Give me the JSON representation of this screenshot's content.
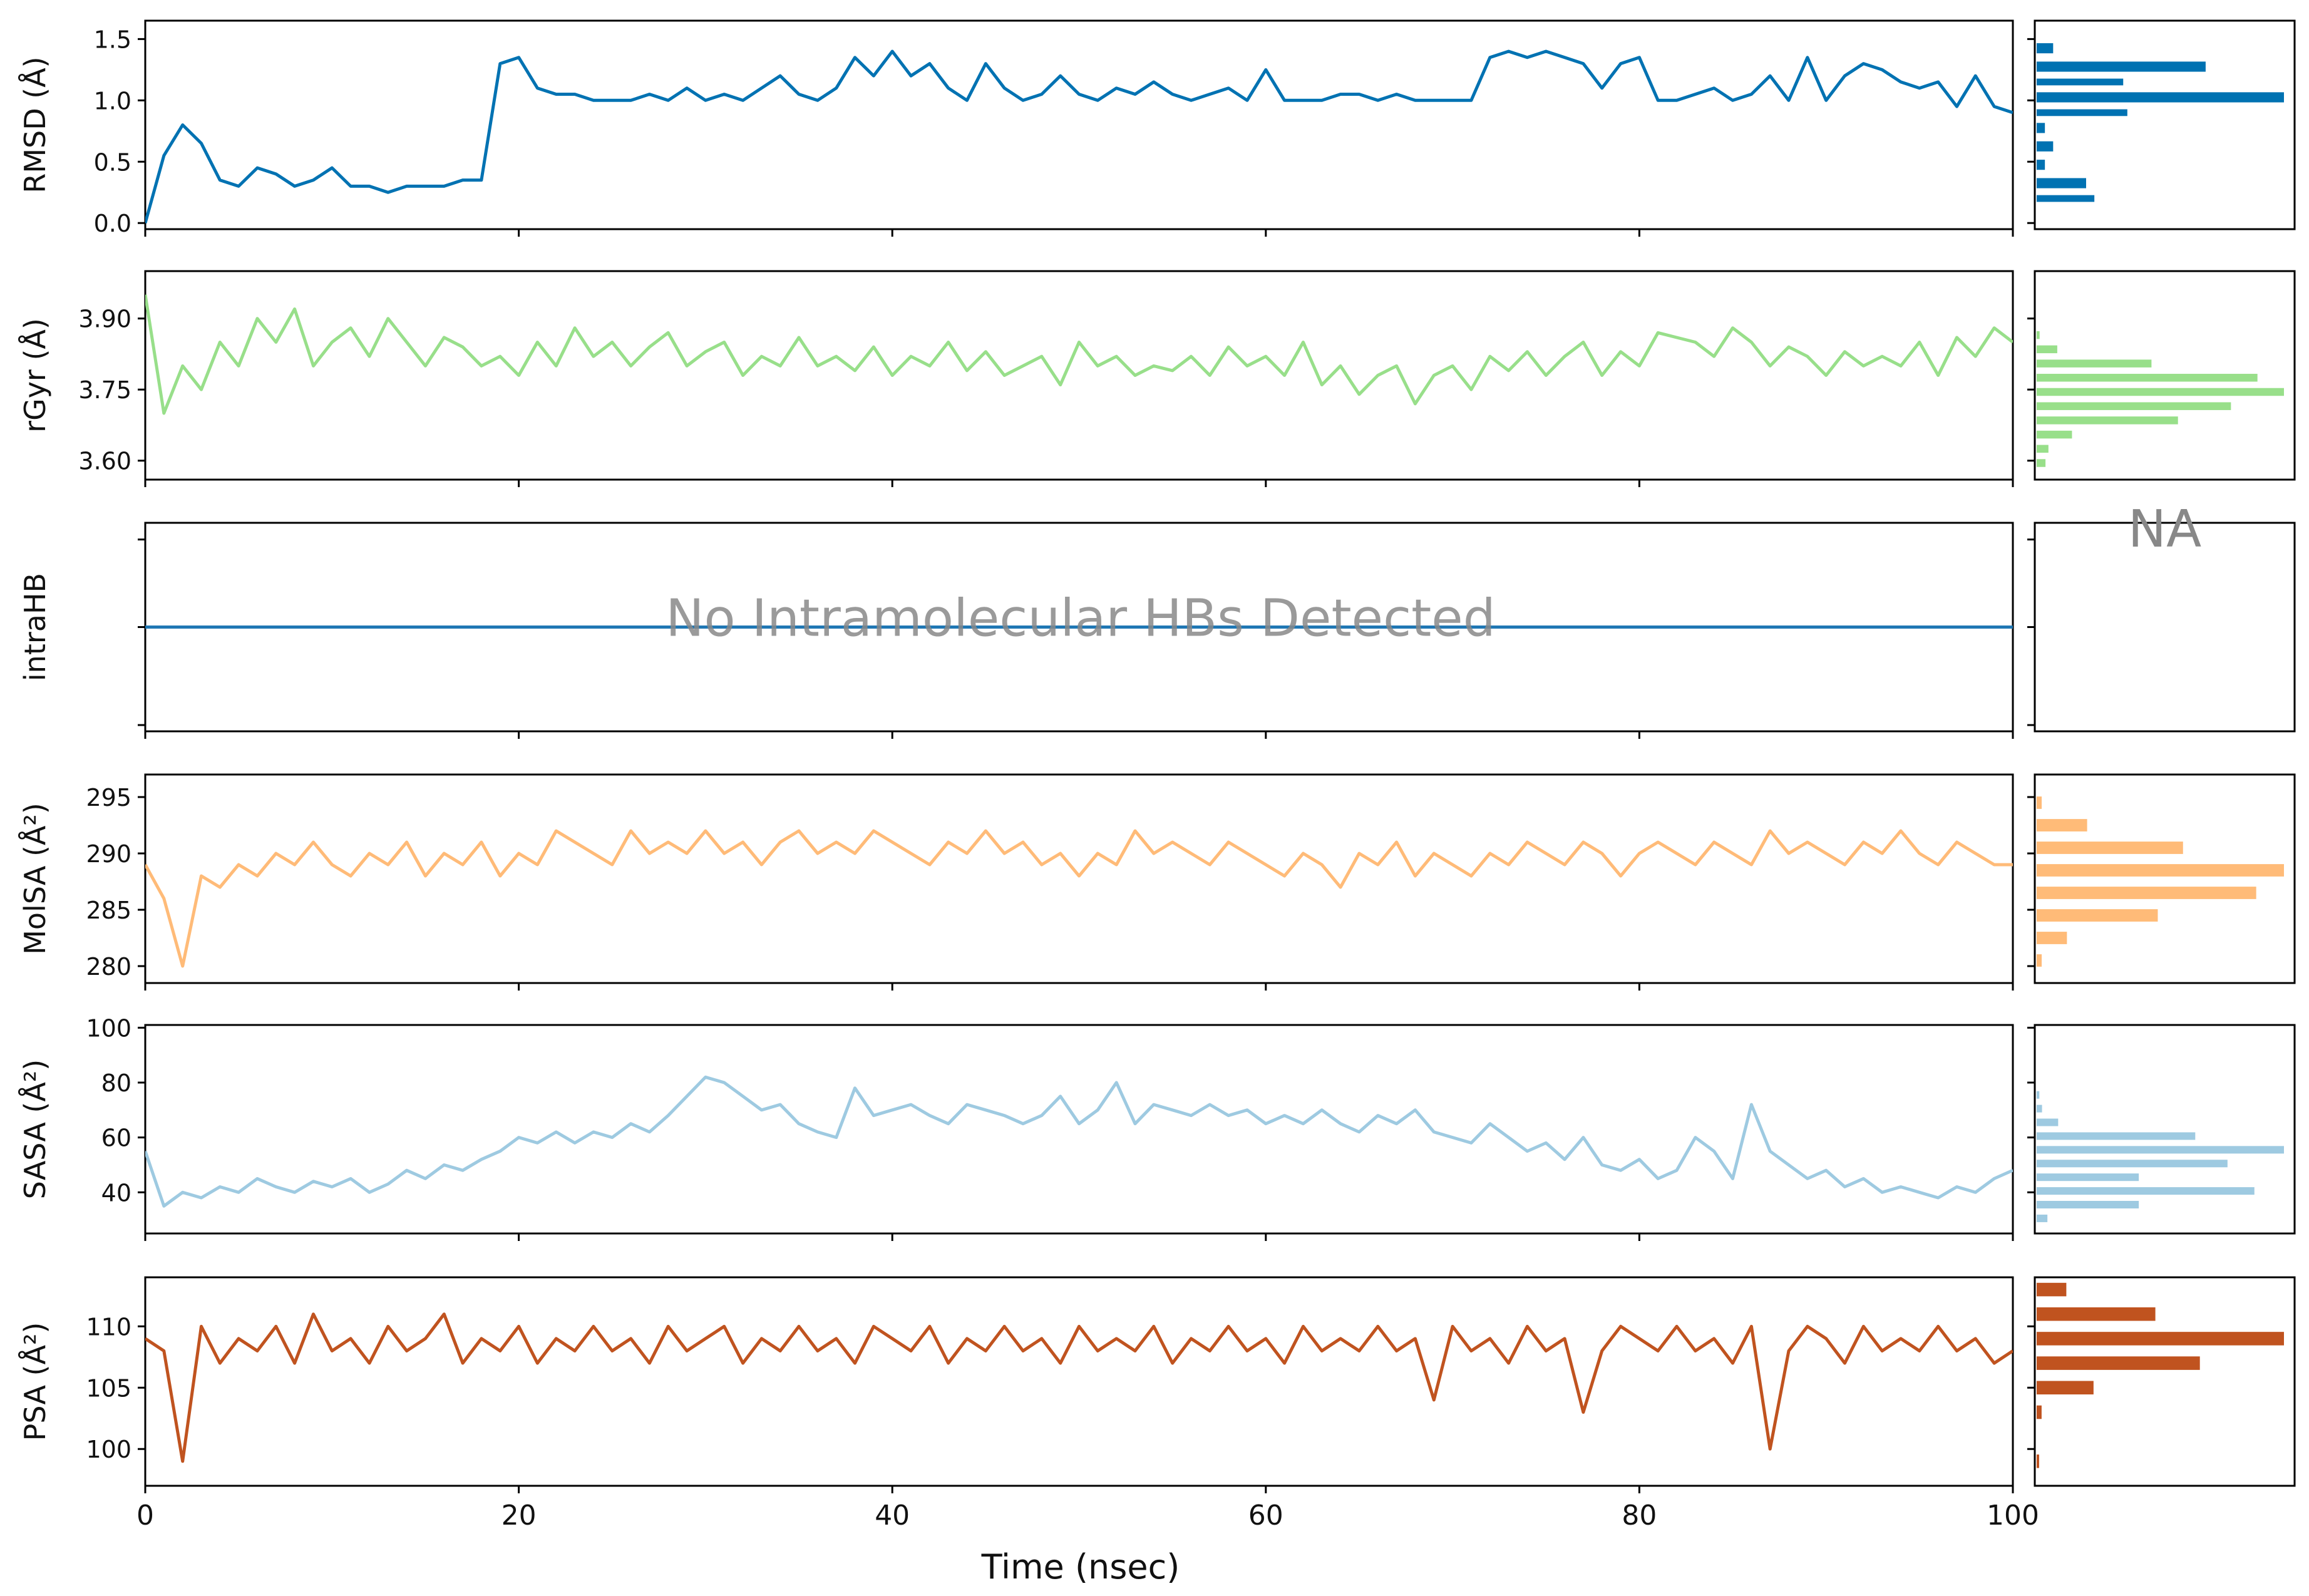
{
  "chart_data": {
    "type": "line",
    "xlabel": "Time (nsec)",
    "xlim": [
      0,
      100
    ],
    "xticks": [
      0,
      20,
      40,
      60,
      80,
      100
    ],
    "panels": [
      {
        "id": "rmsd",
        "ylabel": "RMSD (Å)",
        "color": "#0072b2",
        "ylim": [
          -0.05,
          1.65
        ],
        "yticks": [
          "0.0",
          "0.5",
          "1.0",
          "1.5"
        ],
        "x": [
          0,
          1,
          2,
          3,
          4,
          5,
          6,
          7,
          8,
          9,
          10,
          11,
          12,
          13,
          14,
          15,
          16,
          17,
          18,
          19,
          20,
          21,
          22,
          23,
          24,
          25,
          26,
          27,
          28,
          29,
          30,
          31,
          32,
          33,
          34,
          35,
          36,
          37,
          38,
          39,
          40,
          41,
          42,
          43,
          44,
          45,
          46,
          47,
          48,
          49,
          50,
          51,
          52,
          53,
          54,
          55,
          56,
          57,
          58,
          59,
          60,
          61,
          62,
          63,
          64,
          65,
          66,
          67,
          68,
          69,
          70,
          71,
          72,
          73,
          74,
          75,
          76,
          77,
          78,
          79,
          80,
          81,
          82,
          83,
          84,
          85,
          86,
          87,
          88,
          89,
          90,
          91,
          92,
          93,
          94,
          95,
          96,
          97,
          98,
          99,
          100
        ],
        "values": [
          0.0,
          0.55,
          0.8,
          0.65,
          0.35,
          0.3,
          0.45,
          0.4,
          0.3,
          0.35,
          0.45,
          0.3,
          0.3,
          0.25,
          0.3,
          0.3,
          0.3,
          0.35,
          0.35,
          1.3,
          1.35,
          1.1,
          1.05,
          1.05,
          1.0,
          1.0,
          1.0,
          1.05,
          1.0,
          1.1,
          1.0,
          1.05,
          1.0,
          1.1,
          1.2,
          1.05,
          1.0,
          1.1,
          1.35,
          1.2,
          1.4,
          1.2,
          1.3,
          1.1,
          1.0,
          1.3,
          1.1,
          1.0,
          1.05,
          1.2,
          1.05,
          1.0,
          1.1,
          1.05,
          1.15,
          1.05,
          1.0,
          1.05,
          1.1,
          1.0,
          1.25,
          1.0,
          1.0,
          1.0,
          1.05,
          1.05,
          1.0,
          1.05,
          1.0,
          1.0,
          1.0,
          1.0,
          1.35,
          1.4,
          1.35,
          1.4,
          1.35,
          1.3,
          1.1,
          1.3,
          1.35,
          1.0,
          1.0,
          1.05,
          1.1,
          1.0,
          1.05,
          1.2,
          1.0,
          1.35,
          1.0,
          1.2,
          1.3,
          1.25,
          1.15,
          1.1,
          1.15,
          0.95,
          1.2,
          0.95,
          0.9
        ],
        "hist": {
          "bins": [
            0.15,
            0.25,
            0.4,
            0.55,
            0.7,
            0.85,
            0.95,
            1.1,
            1.2,
            1.35,
            1.5
          ],
          "counts": [
            14,
            12,
            2,
            4,
            2,
            22,
            60,
            21,
            41,
            4
          ]
        }
      },
      {
        "id": "rgyr",
        "ylabel": "rGyr (Å)",
        "color": "#98df8a",
        "ylim": [
          3.56,
          4.0
        ],
        "yticks": [
          "3.60",
          "3.75",
          "3.90"
        ],
        "x": [
          0,
          1,
          2,
          3,
          4,
          5,
          6,
          7,
          8,
          9,
          10,
          11,
          12,
          13,
          14,
          15,
          16,
          17,
          18,
          19,
          20,
          21,
          22,
          23,
          24,
          25,
          26,
          27,
          28,
          29,
          30,
          31,
          32,
          33,
          34,
          35,
          36,
          37,
          38,
          39,
          40,
          41,
          42,
          43,
          44,
          45,
          46,
          47,
          48,
          49,
          50,
          51,
          52,
          53,
          54,
          55,
          56,
          57,
          58,
          59,
          60,
          61,
          62,
          63,
          64,
          65,
          66,
          67,
          68,
          69,
          70,
          71,
          72,
          73,
          74,
          75,
          76,
          77,
          78,
          79,
          80,
          81,
          82,
          83,
          84,
          85,
          86,
          87,
          88,
          89,
          90,
          91,
          92,
          93,
          94,
          95,
          96,
          97,
          98,
          99,
          100
        ],
        "values": [
          3.95,
          3.7,
          3.8,
          3.75,
          3.85,
          3.8,
          3.9,
          3.85,
          3.92,
          3.8,
          3.85,
          3.88,
          3.82,
          3.9,
          3.85,
          3.8,
          3.86,
          3.84,
          3.8,
          3.82,
          3.78,
          3.85,
          3.8,
          3.88,
          3.82,
          3.85,
          3.8,
          3.84,
          3.87,
          3.8,
          3.83,
          3.85,
          3.78,
          3.82,
          3.8,
          3.86,
          3.8,
          3.82,
          3.79,
          3.84,
          3.78,
          3.82,
          3.8,
          3.85,
          3.79,
          3.83,
          3.78,
          3.8,
          3.82,
          3.76,
          3.85,
          3.8,
          3.82,
          3.78,
          3.8,
          3.79,
          3.82,
          3.78,
          3.84,
          3.8,
          3.82,
          3.78,
          3.85,
          3.76,
          3.8,
          3.74,
          3.78,
          3.8,
          3.72,
          3.78,
          3.8,
          3.75,
          3.82,
          3.79,
          3.83,
          3.78,
          3.82,
          3.85,
          3.78,
          3.83,
          3.8,
          3.87,
          3.86,
          3.85,
          3.82,
          3.88,
          3.85,
          3.8,
          3.84,
          3.82,
          3.78,
          3.83,
          3.8,
          3.82,
          3.8,
          3.85,
          3.78,
          3.86,
          3.82,
          3.88,
          3.85
        ],
        "hist": {
          "bins": [
            3.58,
            3.61,
            3.64,
            3.67,
            3.7,
            3.73,
            3.76,
            3.79,
            3.82,
            3.85,
            3.88,
            3.91,
            3.94
          ],
          "counts": [
            3,
            4,
            12,
            48,
            66,
            84,
            75,
            39,
            7,
            1,
            0,
            0
          ]
        }
      },
      {
        "id": "intrahb",
        "ylabel": "intraHB",
        "color": "#1f77b4",
        "ylim": [
          -1,
          1
        ],
        "yticks": [
          "",
          "",
          ""
        ],
        "x": [
          0,
          100
        ],
        "values": [
          0,
          0
        ],
        "annotation": "No Intramolecular HBs Detected",
        "hist_annotation": "NA"
      },
      {
        "id": "molsa",
        "ylabel": "MolSA (Å²)",
        "color": "#ffbb78",
        "ylim": [
          278.5,
          297.0
        ],
        "yticks": [
          "280",
          "285",
          "290",
          "295"
        ],
        "x": [
          0,
          1,
          2,
          3,
          4,
          5,
          6,
          7,
          8,
          9,
          10,
          11,
          12,
          13,
          14,
          15,
          16,
          17,
          18,
          19,
          20,
          21,
          22,
          23,
          24,
          25,
          26,
          27,
          28,
          29,
          30,
          31,
          32,
          33,
          34,
          35,
          36,
          37,
          38,
          39,
          40,
          41,
          42,
          43,
          44,
          45,
          46,
          47,
          48,
          49,
          50,
          51,
          52,
          53,
          54,
          55,
          56,
          57,
          58,
          59,
          60,
          61,
          62,
          63,
          64,
          65,
          66,
          67,
          68,
          69,
          70,
          71,
          72,
          73,
          74,
          75,
          76,
          77,
          78,
          79,
          80,
          81,
          82,
          83,
          84,
          85,
          86,
          87,
          88,
          89,
          90,
          91,
          92,
          93,
          94,
          95,
          96,
          97,
          98,
          99,
          100
        ],
        "values": [
          289,
          286,
          280,
          288,
          287,
          289,
          288,
          290,
          289,
          291,
          289,
          288,
          290,
          289,
          291,
          288,
          290,
          289,
          291,
          288,
          290,
          289,
          292,
          291,
          290,
          289,
          292,
          290,
          291,
          290,
          292,
          290,
          291,
          289,
          291,
          292,
          290,
          291,
          290,
          292,
          291,
          290,
          289,
          291,
          290,
          292,
          290,
          291,
          289,
          290,
          288,
          290,
          289,
          292,
          290,
          291,
          290,
          289,
          291,
          290,
          289,
          288,
          290,
          289,
          287,
          290,
          289,
          291,
          288,
          290,
          289,
          288,
          290,
          289,
          291,
          290,
          289,
          291,
          290,
          288,
          290,
          291,
          290,
          289,
          291,
          290,
          289,
          292,
          290,
          291,
          290,
          289,
          291,
          290,
          292,
          290,
          289,
          291,
          290,
          289,
          289
        ],
        "hist": {
          "bins": [
            279.5,
            281.5,
            283.5,
            285.5,
            287.5,
            289.5,
            291.5,
            293.5,
            295.5
          ],
          "counts": [
            2,
            12,
            48,
            87,
            98,
            58,
            20,
            2
          ]
        }
      },
      {
        "id": "sasa",
        "ylabel": "SASA (Å²)",
        "color": "#9ecae1",
        "ylim": [
          25,
          101
        ],
        "yticks": [
          "40",
          "60",
          "80",
          "100"
        ],
        "x": [
          0,
          1,
          2,
          3,
          4,
          5,
          6,
          7,
          8,
          9,
          10,
          11,
          12,
          13,
          14,
          15,
          16,
          17,
          18,
          19,
          20,
          21,
          22,
          23,
          24,
          25,
          26,
          27,
          28,
          29,
          30,
          31,
          32,
          33,
          34,
          35,
          36,
          37,
          38,
          39,
          40,
          41,
          42,
          43,
          44,
          45,
          46,
          47,
          48,
          49,
          50,
          51,
          52,
          53,
          54,
          55,
          56,
          57,
          58,
          59,
          60,
          61,
          62,
          63,
          64,
          65,
          66,
          67,
          68,
          69,
          70,
          71,
          72,
          73,
          74,
          75,
          76,
          77,
          78,
          79,
          80,
          81,
          82,
          83,
          84,
          85,
          86,
          87,
          88,
          89,
          90,
          91,
          92,
          93,
          94,
          95,
          96,
          97,
          98,
          99,
          100
        ],
        "values": [
          55,
          35,
          40,
          38,
          42,
          40,
          45,
          42,
          40,
          44,
          42,
          45,
          40,
          43,
          48,
          45,
          50,
          48,
          52,
          55,
          60,
          58,
          62,
          58,
          62,
          60,
          65,
          62,
          68,
          75,
          82,
          80,
          75,
          70,
          72,
          65,
          62,
          60,
          78,
          68,
          70,
          72,
          68,
          65,
          72,
          70,
          68,
          65,
          68,
          75,
          65,
          70,
          80,
          65,
          72,
          70,
          68,
          72,
          68,
          70,
          65,
          68,
          65,
          70,
          65,
          62,
          68,
          65,
          70,
          62,
          60,
          58,
          65,
          60,
          55,
          58,
          52,
          60,
          50,
          48,
          52,
          45,
          48,
          60,
          55,
          45,
          72,
          55,
          50,
          45,
          48,
          42,
          45,
          40,
          42,
          40,
          38,
          42,
          40,
          45,
          48
        ],
        "hist": {
          "bins": [
            28,
            33,
            38,
            43,
            48,
            53,
            58,
            63,
            68,
            73,
            78,
            83,
            88,
            93,
            98
          ],
          "counts": [
            4,
            38,
            81,
            38,
            71,
            92,
            59,
            8,
            2,
            1,
            0,
            0,
            0,
            0
          ]
        }
      },
      {
        "id": "psa",
        "ylabel": "PSA (Å²)",
        "color": "#c0531f",
        "ylim": [
          97,
          114
        ],
        "yticks": [
          "100",
          "105",
          "110"
        ],
        "x": [
          0,
          1,
          2,
          3,
          4,
          5,
          6,
          7,
          8,
          9,
          10,
          11,
          12,
          13,
          14,
          15,
          16,
          17,
          18,
          19,
          20,
          21,
          22,
          23,
          24,
          25,
          26,
          27,
          28,
          29,
          30,
          31,
          32,
          33,
          34,
          35,
          36,
          37,
          38,
          39,
          40,
          41,
          42,
          43,
          44,
          45,
          46,
          47,
          48,
          49,
          50,
          51,
          52,
          53,
          54,
          55,
          56,
          57,
          58,
          59,
          60,
          61,
          62,
          63,
          64,
          65,
          66,
          67,
          68,
          69,
          70,
          71,
          72,
          73,
          74,
          75,
          76,
          77,
          78,
          79,
          80,
          81,
          82,
          83,
          84,
          85,
          86,
          87,
          88,
          89,
          90,
          91,
          92,
          93,
          94,
          95,
          96,
          97,
          98,
          99,
          100
        ],
        "values": [
          109,
          108,
          99,
          110,
          107,
          109,
          108,
          110,
          107,
          111,
          108,
          109,
          107,
          110,
          108,
          109,
          111,
          107,
          109,
          108,
          110,
          107,
          109,
          108,
          110,
          108,
          109,
          107,
          110,
          108,
          109,
          110,
          107,
          109,
          108,
          110,
          108,
          109,
          107,
          110,
          109,
          108,
          110,
          107,
          109,
          108,
          110,
          108,
          109,
          107,
          110,
          108,
          109,
          108,
          110,
          107,
          109,
          108,
          110,
          108,
          109,
          107,
          110,
          108,
          109,
          108,
          110,
          108,
          109,
          104,
          110,
          108,
          109,
          107,
          110,
          108,
          109,
          103,
          108,
          110,
          109,
          108,
          110,
          108,
          109,
          107,
          110,
          100,
          108,
          110,
          109,
          107,
          110,
          108,
          109,
          108,
          110,
          108,
          109,
          107,
          108
        ],
        "hist": {
          "bins": [
            98,
            100,
            102,
            104,
            106,
            108,
            110,
            112,
            114
          ],
          "counts": [
            1,
            0,
            2,
            23,
            66,
            100,
            48,
            12
          ]
        }
      }
    ]
  }
}
